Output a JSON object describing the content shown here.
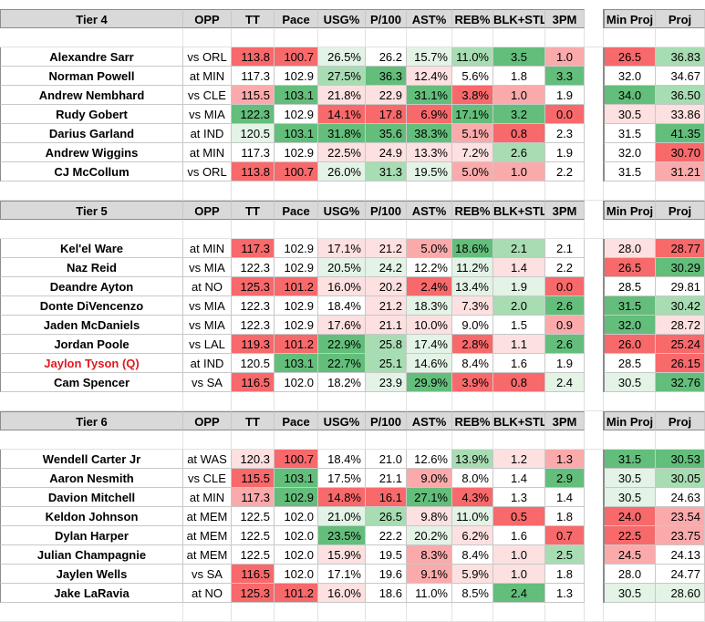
{
  "colors": {
    "red_strong": "#f8696b",
    "red_mid": "#fbaaab",
    "red_light": "#fde0e0",
    "green_strong": "#63be7b",
    "green_mid": "#a8dcb3",
    "green_light": "#e3f3e6",
    "header_bg": "#d9d9d9",
    "questionable_text": "#e0191f"
  },
  "columns": [
    "OPP",
    "TT",
    "Pace",
    "USG%",
    "P/100",
    "AST%",
    "REB%",
    "BLK+STL",
    "3PM"
  ],
  "proj_columns": [
    "Min Proj",
    "Proj"
  ],
  "tiers": [
    {
      "label": "Tier 4",
      "players": [
        {
          "name": "Alexandre Sarr",
          "opp": "vs ORL",
          "tt": "113.8",
          "pace": "100.7",
          "usg": "26.5%",
          "p100": "26.2",
          "ast": "15.7%",
          "reb": "11.0%",
          "bs": "3.5",
          "tpm": "1.0",
          "min": "26.5",
          "proj": "36.83",
          "bg": {
            "tt": "rs",
            "pace": "rs",
            "usg": "gl",
            "p100": "",
            "ast": "gl",
            "reb": "gm",
            "bs": "gs",
            "tpm": "rm",
            "min": "rs",
            "proj": "gm"
          }
        },
        {
          "name": "Norman Powell",
          "opp": "at MIN",
          "tt": "117.3",
          "pace": "102.9",
          "usg": "27.5%",
          "p100": "36.3",
          "ast": "12.4%",
          "reb": "5.6%",
          "bs": "1.8",
          "tpm": "3.3",
          "min": "32.0",
          "proj": "34.67",
          "bg": {
            "tt": "",
            "pace": "",
            "usg": "gm",
            "p100": "gs",
            "ast": "rl",
            "reb": "",
            "bs": "",
            "tpm": "gs",
            "min": "",
            "proj": ""
          }
        },
        {
          "name": "Andrew Nembhard",
          "opp": "vs CLE",
          "tt": "115.5",
          "pace": "103.1",
          "usg": "21.8%",
          "p100": "22.9",
          "ast": "31.1%",
          "reb": "3.8%",
          "bs": "1.0",
          "tpm": "1.9",
          "min": "34.0",
          "proj": "36.50",
          "bg": {
            "tt": "rm",
            "pace": "gs",
            "usg": "rl",
            "p100": "rl",
            "ast": "gs",
            "reb": "rs",
            "bs": "rm",
            "tpm": "",
            "min": "gs",
            "proj": "gm"
          }
        },
        {
          "name": "Rudy Gobert",
          "opp": "vs MIA",
          "tt": "122.3",
          "pace": "102.9",
          "usg": "14.1%",
          "p100": "17.8",
          "ast": "6.9%",
          "reb": "17.1%",
          "bs": "3.2",
          "tpm": "0.0",
          "min": "30.5",
          "proj": "33.86",
          "bg": {
            "tt": "gs",
            "pace": "",
            "usg": "rs",
            "p100": "rs",
            "ast": "rs",
            "reb": "gs",
            "bs": "gs",
            "tpm": "rs",
            "min": "rl",
            "proj": "rl"
          }
        },
        {
          "name": "Darius Garland",
          "opp": "at IND",
          "tt": "120.5",
          "pace": "103.1",
          "usg": "31.8%",
          "p100": "35.6",
          "ast": "38.3%",
          "reb": "5.1%",
          "bs": "0.8",
          "tpm": "2.3",
          "min": "31.5",
          "proj": "41.35",
          "bg": {
            "tt": "gl",
            "pace": "gs",
            "usg": "gs",
            "p100": "gs",
            "ast": "gs",
            "reb": "rm",
            "bs": "rs",
            "tpm": "",
            "min": "",
            "proj": "gs"
          }
        },
        {
          "name": "Andrew Wiggins",
          "opp": "at MIN",
          "tt": "117.3",
          "pace": "102.9",
          "usg": "22.5%",
          "p100": "24.9",
          "ast": "13.3%",
          "reb": "7.2%",
          "bs": "2.6",
          "tpm": "1.9",
          "min": "32.0",
          "proj": "30.70",
          "bg": {
            "tt": "",
            "pace": "",
            "usg": "rl",
            "p100": "rl",
            "ast": "rl",
            "reb": "rl",
            "bs": "gm",
            "tpm": "",
            "min": "",
            "proj": "rs"
          }
        },
        {
          "name": "CJ McCollum",
          "opp": "vs ORL",
          "tt": "113.8",
          "pace": "100.7",
          "usg": "26.0%",
          "p100": "31.3",
          "ast": "19.5%",
          "reb": "5.0%",
          "bs": "1.0",
          "tpm": "2.2",
          "min": "31.5",
          "proj": "31.21",
          "bg": {
            "tt": "rs",
            "pace": "rs",
            "usg": "gl",
            "p100": "gm",
            "ast": "gl",
            "reb": "rm",
            "bs": "rm",
            "tpm": "",
            "min": "",
            "proj": "rm"
          }
        }
      ]
    },
    {
      "label": "Tier 5",
      "players": [
        {
          "name": "Kel'el Ware",
          "opp": "at MIN",
          "tt": "117.3",
          "pace": "102.9",
          "usg": "17.1%",
          "p100": "21.2",
          "ast": "5.0%",
          "reb": "18.6%",
          "bs": "2.1",
          "tpm": "2.1",
          "min": "28.0",
          "proj": "28.77",
          "bg": {
            "tt": "rs",
            "pace": "",
            "usg": "rl",
            "p100": "rl",
            "ast": "rm",
            "reb": "gs",
            "bs": "gm",
            "tpm": "",
            "min": "rl",
            "proj": "rs"
          }
        },
        {
          "name": "Naz Reid",
          "opp": "vs MIA",
          "tt": "122.3",
          "pace": "102.9",
          "usg": "20.5%",
          "p100": "24.2",
          "ast": "12.2%",
          "reb": "11.2%",
          "bs": "1.4",
          "tpm": "2.2",
          "min": "26.5",
          "proj": "30.29",
          "bg": {
            "tt": "",
            "pace": "",
            "usg": "gl",
            "p100": "gl",
            "ast": "",
            "reb": "gl",
            "bs": "rl",
            "tpm": "",
            "min": "rs",
            "proj": "gs"
          }
        },
        {
          "name": "Deandre Ayton",
          "opp": "at NO",
          "tt": "125.3",
          "pace": "101.2",
          "usg": "16.0%",
          "p100": "20.2",
          "ast": "2.4%",
          "reb": "13.4%",
          "bs": "1.9",
          "tpm": "0.0",
          "min": "28.5",
          "proj": "29.81",
          "bg": {
            "tt": "rs",
            "pace": "rs",
            "usg": "rl",
            "p100": "rl",
            "ast": "rs",
            "reb": "gl",
            "bs": "gl",
            "tpm": "rs",
            "min": "",
            "proj": ""
          }
        },
        {
          "name": "Donte DiVencenzo",
          "opp": "vs MIA",
          "tt": "122.3",
          "pace": "102.9",
          "usg": "18.4%",
          "p100": "21.2",
          "ast": "18.3%",
          "reb": "7.3%",
          "bs": "2.0",
          "tpm": "2.6",
          "min": "31.5",
          "proj": "30.42",
          "bg": {
            "tt": "",
            "pace": "",
            "usg": "",
            "p100": "rl",
            "ast": "gl",
            "reb": "rl",
            "bs": "gm",
            "tpm": "gs",
            "min": "gs",
            "proj": "gm"
          }
        },
        {
          "name": "Jaden McDaniels",
          "opp": "vs MIA",
          "tt": "122.3",
          "pace": "102.9",
          "usg": "17.6%",
          "p100": "21.1",
          "ast": "10.0%",
          "reb": "9.0%",
          "bs": "1.5",
          "tpm": "0.9",
          "min": "32.0",
          "proj": "28.72",
          "bg": {
            "tt": "",
            "pace": "",
            "usg": "rl",
            "p100": "rl",
            "ast": "rl",
            "reb": "",
            "bs": "",
            "tpm": "rm",
            "min": "gs",
            "proj": "rl"
          }
        },
        {
          "name": "Jordan Poole",
          "opp": "vs LAL",
          "tt": "119.3",
          "pace": "101.2",
          "usg": "22.9%",
          "p100": "25.8",
          "ast": "17.4%",
          "reb": "2.8%",
          "bs": "1.1",
          "tpm": "2.6",
          "min": "26.0",
          "proj": "25.24",
          "bg": {
            "tt": "rs",
            "pace": "rs",
            "usg": "gs",
            "p100": "gm",
            "ast": "gl",
            "reb": "rs",
            "bs": "rl",
            "tpm": "gs",
            "min": "rs",
            "proj": "rs"
          }
        },
        {
          "name": "Jaylon Tyson (Q)",
          "opp": "at IND",
          "tt": "120.5",
          "pace": "103.1",
          "usg": "22.7%",
          "p100": "25.1",
          "ast": "14.6%",
          "reb": "8.4%",
          "bs": "1.6",
          "tpm": "1.9",
          "min": "28.5",
          "proj": "26.15",
          "bg": {
            "tt": "",
            "pace": "gs",
            "usg": "gs",
            "p100": "gm",
            "ast": "gl",
            "reb": "",
            "bs": "",
            "tpm": "",
            "min": "",
            "proj": "rs"
          }
        },
        {
          "name": "Cam Spencer",
          "opp": "vs SA",
          "tt": "116.5",
          "pace": "102.0",
          "usg": "18.2%",
          "p100": "23.9",
          "ast": "29.9%",
          "reb": "3.9%",
          "bs": "0.8",
          "tpm": "2.4",
          "min": "30.5",
          "proj": "32.76",
          "bg": {
            "tt": "rs",
            "pace": "",
            "usg": "",
            "p100": "gl",
            "ast": "gs",
            "reb": "rs",
            "bs": "rs",
            "tpm": "gl",
            "min": "gl",
            "proj": "gs"
          }
        }
      ]
    },
    {
      "label": "Tier 6",
      "players": [
        {
          "name": "Wendell Carter Jr",
          "opp": "at WAS",
          "tt": "120.3",
          "pace": "100.7",
          "usg": "18.4%",
          "p100": "21.0",
          "ast": "12.6%",
          "reb": "13.9%",
          "bs": "1.2",
          "tpm": "1.3",
          "min": "31.5",
          "proj": "30.53",
          "bg": {
            "tt": "rl",
            "pace": "rs",
            "usg": "",
            "p100": "",
            "ast": "",
            "reb": "gm",
            "bs": "rl",
            "tpm": "rm",
            "min": "gs",
            "proj": "gs"
          }
        },
        {
          "name": "Aaron Nesmith",
          "opp": "vs CLE",
          "tt": "115.5",
          "pace": "103.1",
          "usg": "17.5%",
          "p100": "21.1",
          "ast": "9.0%",
          "reb": "8.0%",
          "bs": "1.4",
          "tpm": "2.9",
          "min": "30.5",
          "proj": "30.05",
          "bg": {
            "tt": "rs",
            "pace": "gs",
            "usg": "",
            "p100": "",
            "ast": "rm",
            "reb": "",
            "bs": "",
            "tpm": "gs",
            "min": "gl",
            "proj": "gm"
          }
        },
        {
          "name": "Davion Mitchell",
          "opp": "at MIN",
          "tt": "117.3",
          "pace": "102.9",
          "usg": "14.8%",
          "p100": "16.1",
          "ast": "27.1%",
          "reb": "4.3%",
          "bs": "1.3",
          "tpm": "1.4",
          "min": "30.5",
          "proj": "24.63",
          "bg": {
            "tt": "rm",
            "pace": "gs",
            "usg": "rs",
            "p100": "rs",
            "ast": "gs",
            "reb": "rs",
            "bs": "",
            "tpm": "",
            "min": "gl",
            "proj": ""
          }
        },
        {
          "name": "Keldon Johnson",
          "opp": "at MEM",
          "tt": "122.5",
          "pace": "102.0",
          "usg": "21.0%",
          "p100": "26.5",
          "ast": "9.8%",
          "reb": "11.0%",
          "bs": "0.5",
          "tpm": "1.8",
          "min": "24.0",
          "proj": "23.54",
          "bg": {
            "tt": "",
            "pace": "",
            "usg": "gl",
            "p100": "gm",
            "ast": "rl",
            "reb": "gl",
            "bs": "rs",
            "tpm": "",
            "min": "rs",
            "proj": "rm"
          }
        },
        {
          "name": "Dylan Harper",
          "opp": "at MEM",
          "tt": "122.5",
          "pace": "102.0",
          "usg": "23.5%",
          "p100": "22.2",
          "ast": "20.2%",
          "reb": "6.2%",
          "bs": "1.6",
          "tpm": "0.7",
          "min": "22.5",
          "proj": "23.75",
          "bg": {
            "tt": "",
            "pace": "",
            "usg": "gs",
            "p100": "",
            "ast": "gl",
            "reb": "rl",
            "bs": "",
            "tpm": "rs",
            "min": "rs",
            "proj": "rm"
          }
        },
        {
          "name": "Julian Champagnie",
          "opp": "at MEM",
          "tt": "122.5",
          "pace": "102.0",
          "usg": "15.9%",
          "p100": "19.5",
          "ast": "8.3%",
          "reb": "8.4%",
          "bs": "1.0",
          "tpm": "2.5",
          "min": "24.5",
          "proj": "24.13",
          "bg": {
            "tt": "",
            "pace": "",
            "usg": "rl",
            "p100": "",
            "ast": "rm",
            "reb": "",
            "bs": "rl",
            "tpm": "gm",
            "min": "rm",
            "proj": ""
          }
        },
        {
          "name": "Jaylen Wells",
          "opp": "vs SA",
          "tt": "116.5",
          "pace": "102.0",
          "usg": "17.1%",
          "p100": "19.6",
          "ast": "9.1%",
          "reb": "5.9%",
          "bs": "1.0",
          "tpm": "1.8",
          "min": "28.0",
          "proj": "24.77",
          "bg": {
            "tt": "rs",
            "pace": "",
            "usg": "",
            "p100": "",
            "ast": "rm",
            "reb": "rl",
            "bs": "rl",
            "tpm": "",
            "min": "",
            "proj": ""
          }
        },
        {
          "name": "Jake LaRavia",
          "opp": "at NO",
          "tt": "125.3",
          "pace": "101.2",
          "usg": "16.0%",
          "p100": "18.6",
          "ast": "11.0%",
          "reb": "8.5%",
          "bs": "2.4",
          "tpm": "1.3",
          "min": "30.5",
          "proj": "28.60",
          "bg": {
            "tt": "rs",
            "pace": "rs",
            "usg": "rl",
            "p100": "",
            "ast": "",
            "reb": "",
            "bs": "gs",
            "tpm": "",
            "min": "gl",
            "proj": "gl"
          }
        }
      ]
    }
  ]
}
